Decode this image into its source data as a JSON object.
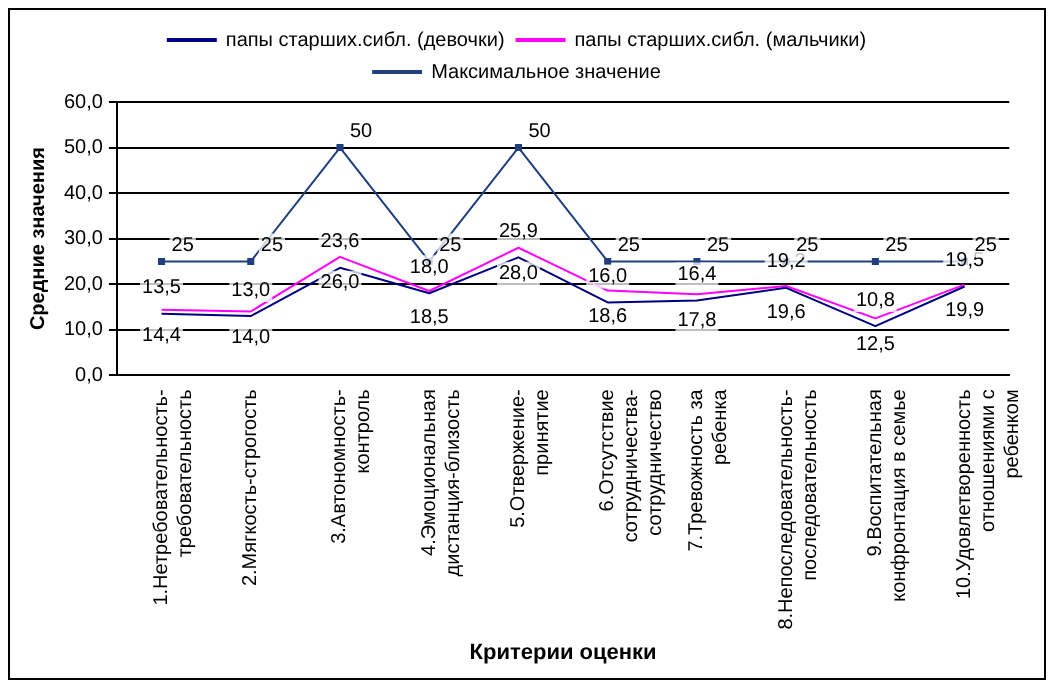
{
  "chart_data": {
    "type": "line",
    "xlabel": "Критерии оценки",
    "ylabel": "Средние значения",
    "categories": [
      "1.Нетребовательность-требовательность",
      "2.Мягкость-строгость",
      "3.Автономность-контроль",
      "4.Эмоциональная дистанция-близость",
      "5.Отвержение-принятие",
      "6.Отсутствие сотрудничества-сотрудничество",
      "7.Тревожность за ребенка",
      "8.Непоследовательность-последовательность",
      "9.Воспитательная конфронтация в семье",
      "10.Удовлетворенность отношениями с ребенком"
    ],
    "series": [
      {
        "name": "папы старших.сибл. (девочки)",
        "color": "#000080",
        "marker": "none",
        "values": [
          13.5,
          13.0,
          23.6,
          18.0,
          25.9,
          16.0,
          16.4,
          19.2,
          10.8,
          19.5
        ],
        "value_labels": [
          "13,5",
          "13,0",
          "23,6",
          "18,0",
          "25,9",
          "16,0",
          "16,4",
          "19,2",
          "10,8",
          "19,5"
        ]
      },
      {
        "name": "папы старших.сибл. (мальчики)",
        "color": "#ff00ff",
        "marker": "none",
        "values": [
          14.4,
          14.0,
          26.0,
          18.5,
          28.0,
          18.6,
          17.8,
          19.6,
          12.5,
          19.9
        ],
        "value_labels": [
          "14,4",
          "14,0",
          "26,0",
          "18,5",
          "28,0",
          "18,6",
          "17,8",
          "19,6",
          "12,5",
          "19,9"
        ]
      },
      {
        "name": "Максимальное значение",
        "color": "#1f3f7f",
        "marker": "square",
        "values": [
          25,
          25,
          50,
          25,
          50,
          25,
          25,
          25,
          25,
          25
        ],
        "value_labels": [
          "25",
          "25",
          "50",
          "25",
          "50",
          "25",
          "25",
          "25",
          "25",
          "25"
        ]
      }
    ],
    "ylim": [
      0,
      60
    ],
    "yticks": [
      {
        "value": 0,
        "label": "0,0"
      },
      {
        "value": 10,
        "label": "10,0"
      },
      {
        "value": 20,
        "label": "20,0"
      },
      {
        "value": 30,
        "label": "30,0"
      },
      {
        "value": 40,
        "label": "40,0"
      },
      {
        "value": 50,
        "label": "50,0"
      },
      {
        "value": 60,
        "label": "60,0"
      }
    ],
    "grid": "y",
    "legend": "top",
    "line_style": "solid"
  }
}
